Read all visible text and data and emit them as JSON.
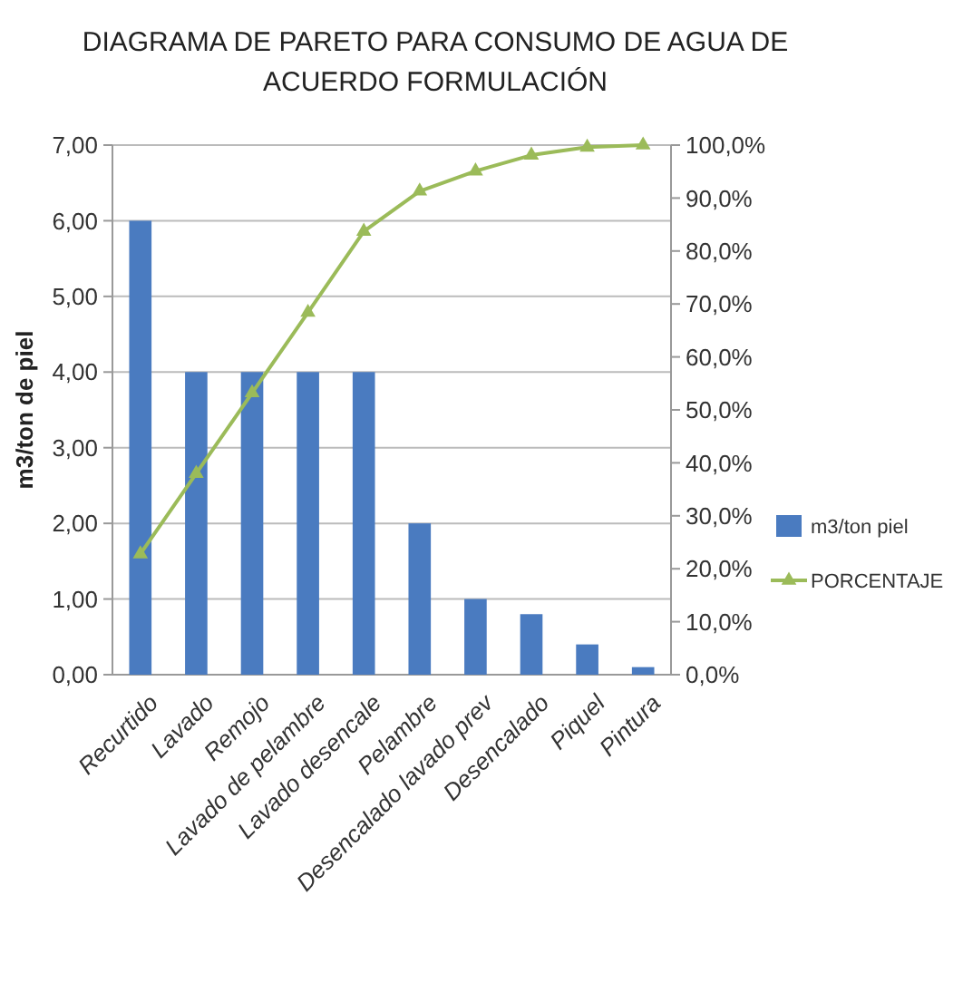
{
  "chart_data": {
    "type": "bar",
    "title": "DIAGRAMA DE PARETO PARA CONSUMO DE AGUA DE ACUERDO  FORMULACIÓN",
    "ylabel": "m3/ton de piel",
    "categories": [
      "Recurtido",
      "Lavado",
      "Remojo",
      "Lavado de pelambre",
      "Lavado desencale",
      "Pelambre",
      "Desencalado lavado prev",
      "Desencalado",
      "Piquel",
      "Pintura"
    ],
    "series": [
      {
        "name": "m3/ton piel",
        "color": "#4a7bc0",
        "values": [
          6,
          4,
          4,
          4,
          4,
          2,
          1,
          0.8,
          0.4,
          0.1
        ]
      },
      {
        "name": "PORCENTAJE",
        "type": "line",
        "axis": "y2",
        "color": "#9bbb59",
        "marker": "triangle",
        "values": [
          22.8,
          38.0,
          53.2,
          68.4,
          83.7,
          91.3,
          95.1,
          98.1,
          99.6,
          100
        ]
      }
    ],
    "ylim": [
      0,
      7
    ],
    "yticks": [
      {
        "value": 0,
        "label": "0,00"
      },
      {
        "value": 1,
        "label": "1,00"
      },
      {
        "value": 2,
        "label": "2,00"
      },
      {
        "value": 3,
        "label": "3,00"
      },
      {
        "value": 4,
        "label": "4,00"
      },
      {
        "value": 5,
        "label": "5,00"
      },
      {
        "value": 6,
        "label": "6,00"
      },
      {
        "value": 7,
        "label": "7,00"
      }
    ],
    "y2lim": [
      0,
      100
    ],
    "y2ticks": [
      {
        "value": 0,
        "label": "0,0%"
      },
      {
        "value": 10,
        "label": "10,0%"
      },
      {
        "value": 20,
        "label": "20,0%"
      },
      {
        "value": 30,
        "label": "30,0%"
      },
      {
        "value": 40,
        "label": "40,0%"
      },
      {
        "value": 50,
        "label": "50,0%"
      },
      {
        "value": 60,
        "label": "60,0%"
      },
      {
        "value": 70,
        "label": "70,0%"
      },
      {
        "value": 80,
        "label": "80,0%"
      },
      {
        "value": 90,
        "label": "90,0%"
      },
      {
        "value": 100,
        "label": "100,0%"
      }
    ],
    "grid": "y",
    "legend": "right"
  }
}
